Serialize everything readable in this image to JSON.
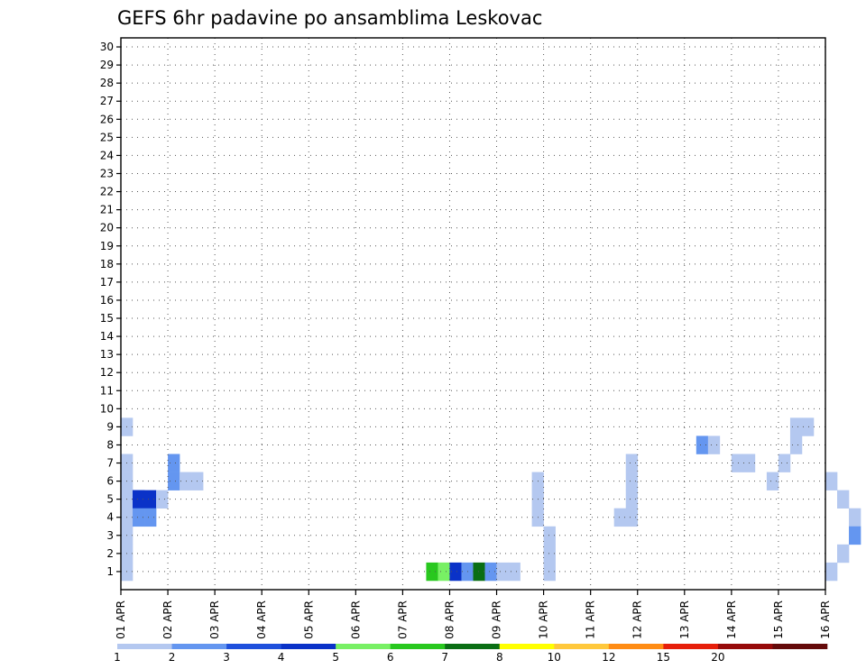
{
  "chart_data": {
    "type": "heatmap",
    "title": "GEFS 6hr padavine po ansamblima Leskovac",
    "x_ticks": [
      "01 APR",
      "02 APR",
      "03 APR",
      "04 APR",
      "05 APR",
      "06 APR",
      "07 APR",
      "08 APR",
      "09 APR",
      "10 APR",
      "11 APR",
      "12 APR",
      "13 APR",
      "14 APR",
      "15 APR",
      "16 APR"
    ],
    "y_ticks": [
      "1",
      "2",
      "3",
      "4",
      "5",
      "6",
      "7",
      "8",
      "9",
      "10",
      "11",
      "12",
      "13",
      "14",
      "15",
      "16",
      "17",
      "18",
      "19",
      "20",
      "21",
      "22",
      "23",
      "24",
      "25",
      "26",
      "27",
      "28",
      "29",
      "30"
    ],
    "steps_per_day": 4,
    "grid": true,
    "colorbar": {
      "labels": [
        "1",
        "2",
        "3",
        "4",
        "5",
        "6",
        "7",
        "8",
        "10",
        "12",
        "15",
        "20"
      ],
      "colors": [
        "#b4c8f0",
        "#6496f0",
        "#1e50dc",
        "#0a32c8",
        "#78f064",
        "#28c81e",
        "#0a6e14",
        "#ffff00",
        "#ffc83c",
        "#ff8c14",
        "#e61e0a",
        "#960a0a",
        "#640a0a"
      ]
    },
    "cells": [
      [
        1,
        0,
        1
      ],
      [
        2,
        0,
        1
      ],
      [
        3,
        0,
        1
      ],
      [
        4,
        0,
        1
      ],
      [
        5,
        0,
        1
      ],
      [
        6,
        0,
        1
      ],
      [
        7,
        0,
        1
      ],
      [
        9,
        0,
        1
      ],
      [
        5,
        1,
        3
      ],
      [
        5,
        1,
        4
      ],
      [
        4,
        1,
        2
      ],
      [
        5,
        2,
        4
      ],
      [
        4,
        2,
        2
      ],
      [
        5,
        3,
        1
      ],
      [
        6,
        4,
        2
      ],
      [
        7,
        4,
        2
      ],
      [
        6,
        5,
        1
      ],
      [
        6,
        6,
        1
      ],
      [
        1,
        26,
        6
      ],
      [
        1,
        27,
        5
      ],
      [
        1,
        28,
        4
      ],
      [
        1,
        29,
        2
      ],
      [
        1,
        30,
        7
      ],
      [
        1,
        31,
        2
      ],
      [
        1,
        32,
        1
      ],
      [
        1,
        33,
        1
      ],
      [
        2,
        36,
        1
      ],
      [
        1,
        36,
        1
      ],
      [
        3,
        36,
        1
      ],
      [
        4,
        35,
        1
      ],
      [
        5,
        35,
        1
      ],
      [
        6,
        35,
        1
      ],
      [
        4,
        42,
        1
      ],
      [
        4,
        43,
        1
      ],
      [
        5,
        43,
        1
      ],
      [
        6,
        43,
        1
      ],
      [
        7,
        43,
        1
      ],
      [
        8,
        49,
        2
      ],
      [
        8,
        50,
        1
      ],
      [
        7,
        52,
        1
      ],
      [
        7,
        53,
        1
      ],
      [
        6,
        55,
        1
      ],
      [
        7,
        56,
        1
      ],
      [
        8,
        57,
        1
      ],
      [
        9,
        57,
        1
      ],
      [
        9,
        58,
        1
      ],
      [
        6,
        60,
        1
      ],
      [
        5,
        61,
        1
      ],
      [
        4,
        62,
        1
      ],
      [
        3,
        62,
        2
      ],
      [
        2,
        61,
        1
      ],
      [
        1,
        60,
        1
      ]
    ]
  }
}
